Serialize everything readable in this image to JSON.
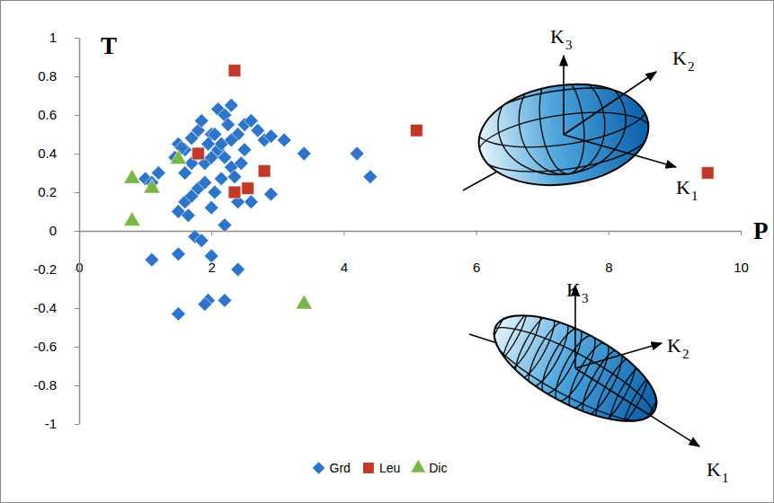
{
  "chart_data": {
    "type": "scatter",
    "x_label": "P",
    "y_label": "T",
    "xlim": [
      0,
      10
    ],
    "xticks": [
      0,
      2,
      4,
      6,
      8,
      10
    ],
    "ylim": [
      -1,
      1
    ],
    "yticks": [
      -1,
      -0.8,
      -0.6,
      -0.4,
      -0.2,
      0,
      0.2,
      0.4,
      0.6,
      0.8,
      1
    ],
    "legend": "bottom",
    "series": [
      {
        "name": "Grd",
        "color": "#2e75c9",
        "marker": "diamond",
        "x": [
          1.0,
          1.2,
          1.1,
          1.5,
          1.6,
          1.7,
          1.8,
          1.85,
          2.0,
          2.1,
          2.2,
          2.3,
          2.25,
          2.4,
          2.5,
          2.6,
          2.7,
          2.8,
          2.9,
          3.1,
          3.4,
          4.2,
          4.4,
          2.9,
          2.6,
          2.4,
          2.2,
          1.5,
          1.6,
          1.7,
          1.8,
          1.9,
          2.0,
          2.05,
          1.9,
          2.0,
          2.1,
          2.2,
          2.3,
          2.15,
          1.95,
          2.05,
          1.6,
          1.7,
          1.8,
          1.75,
          1.85,
          2.0,
          2.4,
          1.1,
          1.5,
          1.5,
          1.95,
          1.9,
          2.2,
          1.65,
          2.35,
          2.45,
          2.5,
          2.3,
          1.55,
          2.15,
          1.45
        ],
        "values": [
          0.27,
          0.3,
          0.25,
          0.45,
          0.42,
          0.48,
          0.52,
          0.57,
          0.5,
          0.63,
          0.6,
          0.65,
          0.55,
          0.5,
          0.55,
          0.57,
          0.52,
          0.47,
          0.49,
          0.47,
          0.4,
          0.4,
          0.28,
          0.19,
          0.15,
          0.15,
          0.03,
          0.1,
          0.15,
          0.18,
          0.22,
          0.25,
          0.12,
          0.2,
          0.35,
          0.38,
          0.42,
          0.38,
          0.33,
          0.45,
          0.45,
          0.5,
          0.3,
          0.35,
          0.4,
          -0.03,
          -0.05,
          -0.13,
          -0.2,
          -0.15,
          -0.12,
          -0.43,
          -0.36,
          -0.38,
          -0.36,
          0.08,
          0.28,
          0.35,
          0.42,
          0.47,
          0.43,
          0.27,
          0.38
        ]
      },
      {
        "name": "Leu",
        "color": "#c0392b",
        "marker": "square",
        "x": [
          2.35,
          1.8,
          2.8,
          2.35,
          2.55,
          5.1,
          9.5
        ],
        "values": [
          0.83,
          0.4,
          0.31,
          0.2,
          0.22,
          0.52,
          0.3
        ]
      },
      {
        "name": "Dic",
        "color": "#7ab648",
        "marker": "triangle",
        "x": [
          0.8,
          0.8,
          1.1,
          1.5,
          3.4
        ],
        "values": [
          0.27,
          0.05,
          0.22,
          0.37,
          -0.38
        ]
      }
    ],
    "annotations": [
      {
        "text": "K",
        "sub": "3"
      },
      {
        "text": "K",
        "sub": "2"
      },
      {
        "text": "K",
        "sub": "1"
      },
      {
        "text": "K",
        "sub": "3"
      },
      {
        "text": "K",
        "sub": "2"
      },
      {
        "text": "K",
        "sub": "1"
      }
    ]
  }
}
